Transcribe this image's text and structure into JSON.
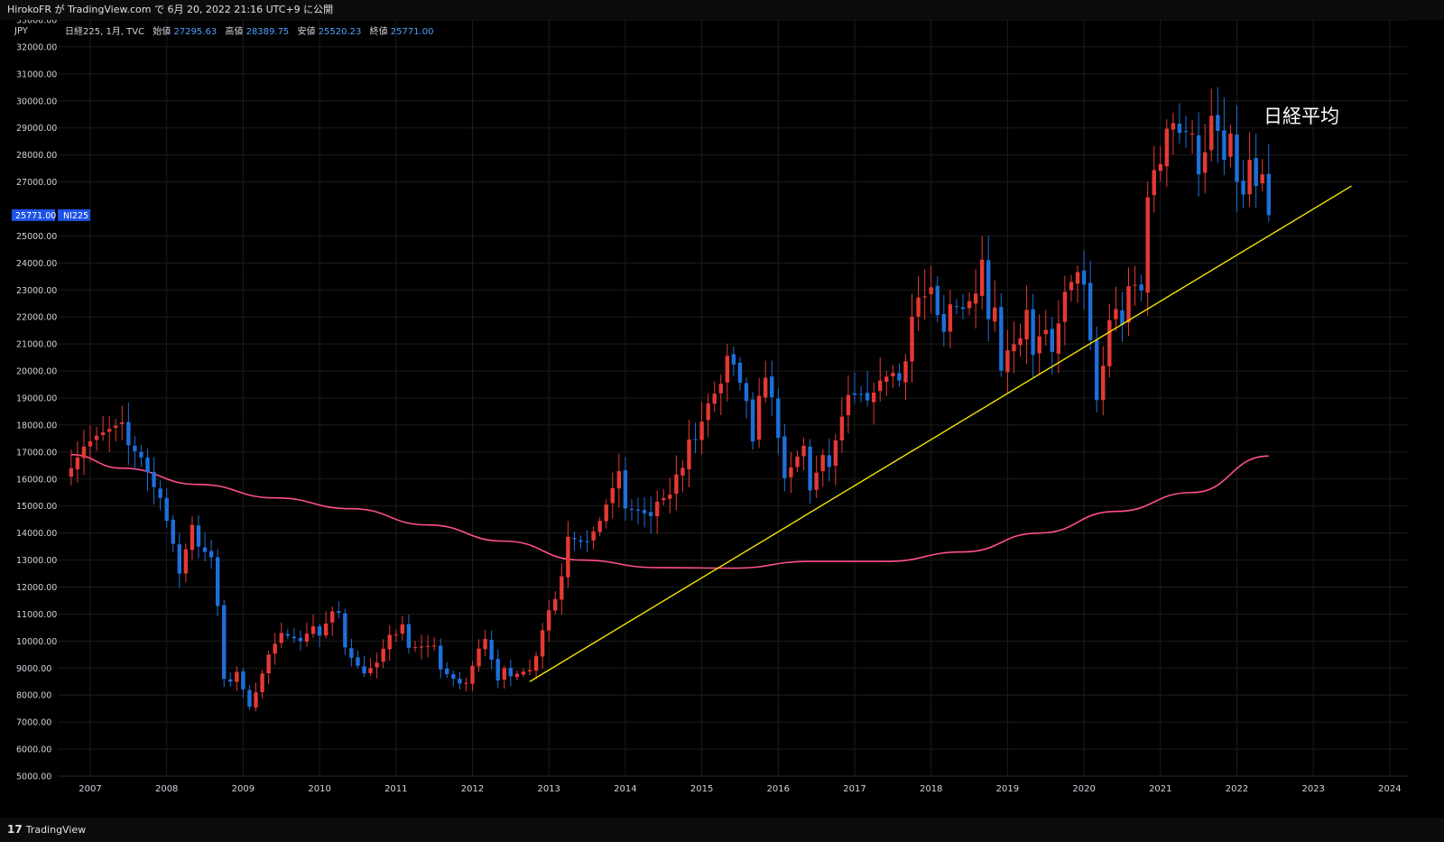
{
  "header": {
    "publish_line": "HirokoFR が TradingView.com で 6月 20, 2022 21:16 UTC+9 に公開"
  },
  "footer": {
    "brand": "TradingView",
    "logo_glyph": "17"
  },
  "legend": {
    "symbol": "日経225, 1月, TVC",
    "open_label": "始値",
    "open": "27295.63",
    "high_label": "高値",
    "high": "28389.75",
    "low_label": "安値",
    "low": "25520.23",
    "close_label": "終値",
    "close": "25771.00"
  },
  "price_axis": {
    "unit": "JPY",
    "current_price": "25771.00",
    "ticker": "NI225"
  },
  "annotation": {
    "text": "日経平均"
  },
  "colors": {
    "up": "#e53935",
    "down": "#1e6fd9",
    "ma": "#ff4f8b",
    "trend": "#f2e600",
    "grid": "#1c1c1c",
    "label_bg": "#1e53e5",
    "legend_value": "#4fa3ff"
  },
  "chart_data": {
    "type": "candlestick",
    "timeframe": "1M",
    "ylim": [
      5000,
      33000
    ],
    "y_ticks": [
      "5000.00",
      "6000.00",
      "7000.00",
      "8000.00",
      "9000.00",
      "10000.00",
      "11000.00",
      "12000.00",
      "13000.00",
      "14000.00",
      "15000.00",
      "16000.00",
      "17000.00",
      "18000.00",
      "19000.00",
      "20000.00",
      "21000.00",
      "22000.00",
      "23000.00",
      "24000.00",
      "25000.00",
      "27000.00",
      "28000.00",
      "29000.00",
      "30000.00",
      "31000.00",
      "32000.00",
      "33000.00"
    ],
    "x_ticks": [
      "2007",
      "2008",
      "2009",
      "2010",
      "2011",
      "2012",
      "2013",
      "2014",
      "2015",
      "2016",
      "2017",
      "2018",
      "2019",
      "2020",
      "2021",
      "2022",
      "2023",
      "2024"
    ],
    "anchors": [
      [
        "2006-10",
        16400
      ],
      [
        "2006-12",
        17200
      ],
      [
        "2007-02",
        17600
      ],
      [
        "2007-06",
        18100
      ],
      [
        "2007-07",
        17250
      ],
      [
        "2007-09",
        16800
      ],
      [
        "2007-11",
        15700
      ],
      [
        "2007-12",
        15300
      ],
      [
        "2008-02",
        13600
      ],
      [
        "2008-03",
        12500
      ],
      [
        "2008-05",
        14300
      ],
      [
        "2008-06",
        13500
      ],
      [
        "2008-08",
        13100
      ],
      [
        "2008-09",
        11300
      ],
      [
        "2008-10",
        8600
      ],
      [
        "2008-11",
        8500
      ],
      [
        "2008-12",
        8860
      ],
      [
        "2009-02",
        7570
      ],
      [
        "2009-03",
        8100
      ],
      [
        "2009-05",
        9500
      ],
      [
        "2009-07",
        10300
      ],
      [
        "2009-09",
        10100
      ],
      [
        "2009-10",
        10000
      ],
      [
        "2009-12",
        10550
      ],
      [
        "2010-01",
        10200
      ],
      [
        "2010-03",
        11100
      ],
      [
        "2010-04",
        11050
      ],
      [
        "2010-05",
        9770
      ],
      [
        "2010-06",
        9380
      ],
      [
        "2010-08",
        8800
      ],
      [
        "2010-10",
        9200
      ],
      [
        "2010-12",
        10230
      ],
      [
        "2011-01",
        10240
      ],
      [
        "2011-02",
        10620
      ],
      [
        "2011-03",
        9750
      ],
      [
        "2011-06",
        9820
      ],
      [
        "2011-07",
        9830
      ],
      [
        "2011-08",
        8950
      ],
      [
        "2011-11",
        8430
      ],
      [
        "2011-12",
        8450
      ],
      [
        "2012-02",
        9720
      ],
      [
        "2012-03",
        10080
      ],
      [
        "2012-05",
        8540
      ],
      [
        "2012-06",
        9000
      ],
      [
        "2012-07",
        8700
      ],
      [
        "2012-09",
        8870
      ],
      [
        "2012-10",
        8930
      ],
      [
        "2012-11",
        9450
      ],
      [
        "2012-12",
        10400
      ],
      [
        "2013-01",
        11140
      ],
      [
        "2013-02",
        11560
      ],
      [
        "2013-03",
        12400
      ],
      [
        "2013-04",
        13860
      ],
      [
        "2013-05",
        13770
      ],
      [
        "2013-06",
        13680
      ],
      [
        "2013-07",
        13670
      ],
      [
        "2013-09",
        14450
      ],
      [
        "2013-11",
        15660
      ],
      [
        "2013-12",
        16290
      ],
      [
        "2014-01",
        14910
      ],
      [
        "2014-03",
        14830
      ],
      [
        "2014-05",
        14630
      ],
      [
        "2014-06",
        15160
      ],
      [
        "2014-08",
        15420
      ],
      [
        "2014-09",
        16170
      ],
      [
        "2014-10",
        16410
      ],
      [
        "2014-11",
        17460
      ],
      [
        "2014-12",
        17450
      ],
      [
        "2015-02",
        18800
      ],
      [
        "2015-04",
        19520
      ],
      [
        "2015-05",
        20560
      ],
      [
        "2015-06",
        20240
      ],
      [
        "2015-08",
        18890
      ],
      [
        "2015-09",
        17390
      ],
      [
        "2015-10",
        19080
      ],
      [
        "2015-11",
        19750
      ],
      [
        "2015-12",
        19030
      ],
      [
        "2016-01",
        17520
      ],
      [
        "2016-02",
        16030
      ],
      [
        "2016-05",
        17230
      ],
      [
        "2016-06",
        15580
      ],
      [
        "2016-08",
        16890
      ],
      [
        "2016-09",
        16450
      ],
      [
        "2016-10",
        17430
      ],
      [
        "2016-11",
        18310
      ],
      [
        "2016-12",
        19110
      ],
      [
        "2017-02",
        19120
      ],
      [
        "2017-03",
        18910
      ],
      [
        "2017-04",
        19200
      ],
      [
        "2017-05",
        19650
      ],
      [
        "2017-07",
        19930
      ],
      [
        "2017-08",
        19650
      ],
      [
        "2017-09",
        20360
      ],
      [
        "2017-10",
        22010
      ],
      [
        "2017-11",
        22720
      ],
      [
        "2017-12",
        22760
      ],
      [
        "2018-01",
        23100
      ],
      [
        "2018-02",
        22070
      ],
      [
        "2018-03",
        21450
      ],
      [
        "2018-04",
        22470
      ],
      [
        "2018-06",
        22300
      ],
      [
        "2018-08",
        22870
      ],
      [
        "2018-09",
        24120
      ],
      [
        "2018-10",
        21920
      ],
      [
        "2018-11",
        22350
      ],
      [
        "2018-12",
        20010
      ],
      [
        "2019-01",
        20770
      ],
      [
        "2019-03",
        21210
      ],
      [
        "2019-04",
        22260
      ],
      [
        "2019-05",
        20600
      ],
      [
        "2019-06",
        21280
      ],
      [
        "2019-07",
        21520
      ],
      [
        "2019-08",
        20700
      ],
      [
        "2019-09",
        21760
      ],
      [
        "2019-10",
        22930
      ],
      [
        "2019-11",
        23290
      ],
      [
        "2019-12",
        23660
      ],
      [
        "2020-01",
        23200
      ],
      [
        "2020-02",
        21140
      ],
      [
        "2020-03",
        18920
      ],
      [
        "2020-04",
        20190
      ],
      [
        "2020-05",
        21880
      ],
      [
        "2020-06",
        22290
      ],
      [
        "2020-07",
        21710
      ],
      [
        "2020-08",
        23140
      ],
      [
        "2020-09",
        23190
      ],
      [
        "2020-10",
        22980
      ],
      [
        "2020-11",
        26430
      ],
      [
        "2020-12",
        27440
      ],
      [
        "2021-01",
        27660
      ],
      [
        "2021-02",
        28970
      ],
      [
        "2021-03",
        29180
      ],
      [
        "2021-04",
        28810
      ],
      [
        "2021-05",
        28860
      ],
      [
        "2021-06",
        28790
      ],
      [
        "2021-07",
        27280
      ],
      [
        "2021-08",
        28090
      ],
      [
        "2021-09",
        29450
      ],
      [
        "2021-10",
        28890
      ],
      [
        "2021-11",
        27820
      ],
      [
        "2021-12",
        28790
      ],
      [
        "2022-01",
        27000
      ],
      [
        "2022-02",
        26530
      ],
      [
        "2022-03",
        27820
      ],
      [
        "2022-04",
        26850
      ],
      [
        "2022-05",
        27280
      ],
      [
        "2022-06",
        25771
      ]
    ],
    "ma_points": [
      [
        "2006-10",
        16900
      ],
      [
        "2007-06",
        16400
      ],
      [
        "2008-06",
        15800
      ],
      [
        "2009-06",
        15300
      ],
      [
        "2010-06",
        14900
      ],
      [
        "2011-06",
        14300
      ],
      [
        "2012-06",
        13700
      ],
      [
        "2013-06",
        13000
      ],
      [
        "2014-06",
        12720
      ],
      [
        "2015-06",
        12700
      ],
      [
        "2016-06",
        12950
      ],
      [
        "2017-06",
        12950
      ],
      [
        "2018-06",
        13300
      ],
      [
        "2019-06",
        14000
      ],
      [
        "2020-06",
        14800
      ],
      [
        "2021-06",
        15500
      ],
      [
        "2022-06",
        16850
      ]
    ],
    "trendline": {
      "start": [
        "2012-10",
        8500
      ],
      "end": [
        "2023-07",
        26850
      ]
    },
    "series": [
      {
        "name": "NI225",
        "role": "candles"
      },
      {
        "role": "moving_average"
      },
      {
        "role": "trendline"
      }
    ]
  }
}
